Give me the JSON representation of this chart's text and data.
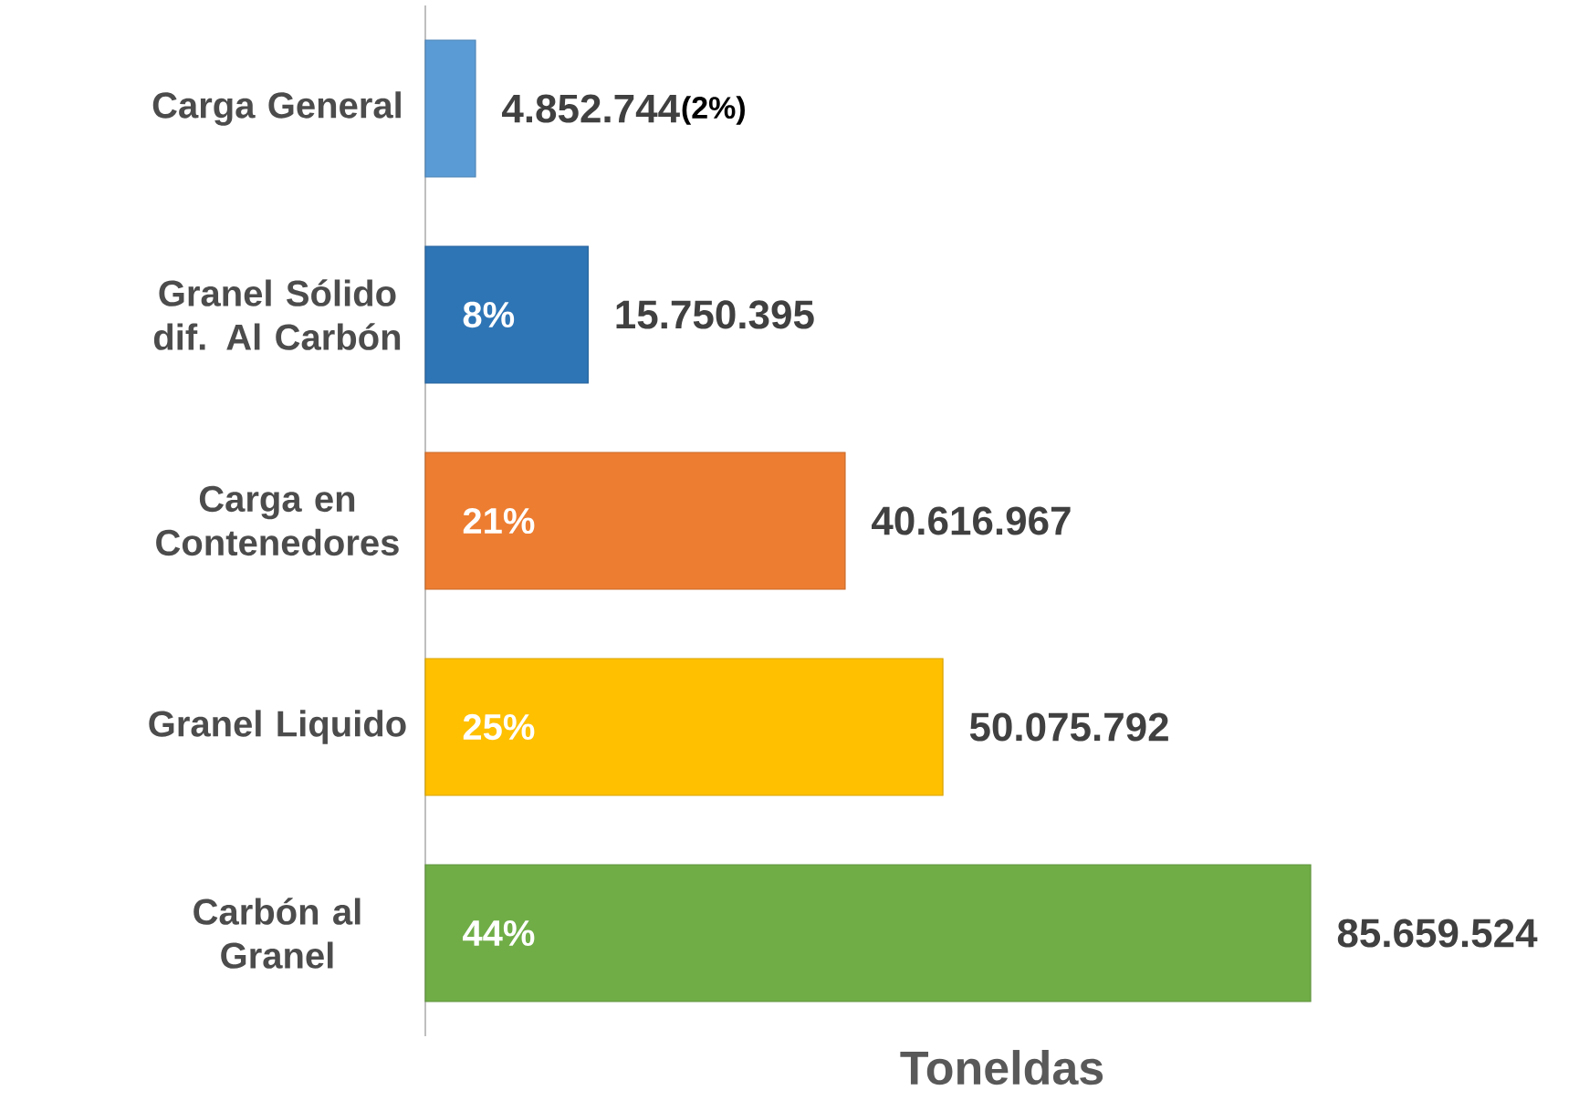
{
  "chart_data": {
    "type": "bar",
    "orientation": "horizontal",
    "xlabel": "Toneldas",
    "categories": [
      "Carga General",
      "Granel Sólido dif. Al Carbón",
      "Carga en Contenedores",
      "Granel Liquido",
      "Carbón al Granel"
    ],
    "values": [
      4852744,
      15750395,
      40616967,
      50075792,
      85659524
    ],
    "value_labels": [
      "4.852.744",
      "15.750.395",
      "40.616.967",
      "50.075.792",
      "85.659.524"
    ],
    "colors": [
      "#5b9bd5",
      "#2e75b6",
      "#ed7d31",
      "#ffc000",
      "#70ad47"
    ],
    "annotations": [
      "(2%)",
      "8%",
      "21%",
      "25%",
      "44%"
    ]
  }
}
